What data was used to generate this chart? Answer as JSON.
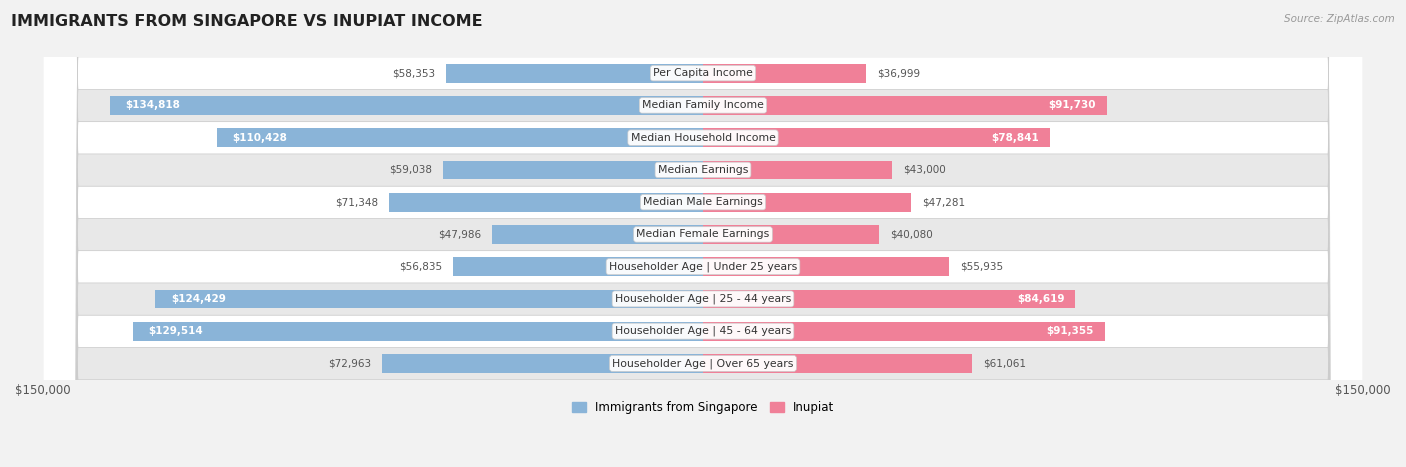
{
  "title": "IMMIGRANTS FROM SINGAPORE VS INUPIAT INCOME",
  "source": "Source: ZipAtlas.com",
  "categories": [
    "Per Capita Income",
    "Median Family Income",
    "Median Household Income",
    "Median Earnings",
    "Median Male Earnings",
    "Median Female Earnings",
    "Householder Age | Under 25 years",
    "Householder Age | 25 - 44 years",
    "Householder Age | 45 - 64 years",
    "Householder Age | Over 65 years"
  ],
  "singapore_values": [
    58353,
    134818,
    110428,
    59038,
    71348,
    47986,
    56835,
    124429,
    129514,
    72963
  ],
  "inupiat_values": [
    36999,
    91730,
    78841,
    43000,
    47281,
    40080,
    55935,
    84619,
    91355,
    61061
  ],
  "singapore_labels": [
    "$58,353",
    "$134,818",
    "$110,428",
    "$59,038",
    "$71,348",
    "$47,986",
    "$56,835",
    "$124,429",
    "$129,514",
    "$72,963"
  ],
  "inupiat_labels": [
    "$36,999",
    "$91,730",
    "$78,841",
    "$43,000",
    "$47,281",
    "$40,080",
    "$55,935",
    "$84,619",
    "$91,355",
    "$61,061"
  ],
  "singapore_color": "#8ab4d8",
  "inupiat_color": "#f08098",
  "singapore_label_inside_threshold": 95000,
  "inupiat_label_inside_threshold": 65000,
  "xlim": 150000,
  "bar_height": 0.58,
  "background_color": "#f2f2f2",
  "row_bg_even": "#ffffff",
  "row_bg_odd": "#e8e8e8",
  "legend_singapore": "Immigrants from Singapore",
  "legend_inupiat": "Inupiat"
}
